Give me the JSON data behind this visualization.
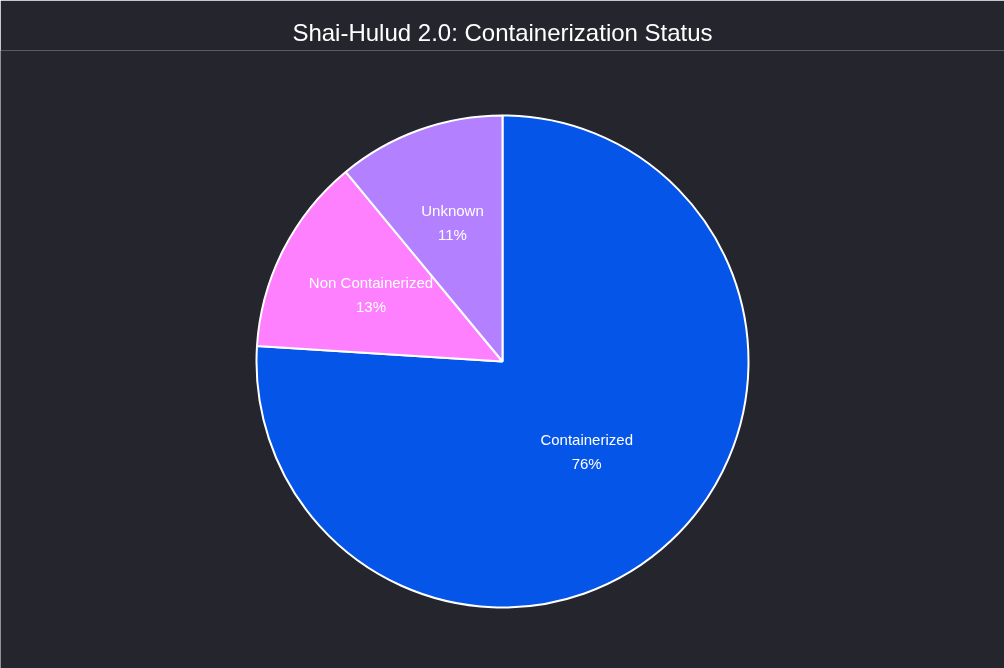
{
  "chart_data": {
    "type": "pie",
    "title": "Shai-Hulud 2.0: Containerization Status",
    "categories": [
      "Containerized",
      "Non Containerized",
      "Unknown"
    ],
    "values": [
      76,
      13,
      11
    ],
    "value_labels": [
      "76%",
      "13%",
      "11%"
    ],
    "colors": [
      "#0455e8",
      "#ff80ff",
      "#b380ff"
    ]
  }
}
